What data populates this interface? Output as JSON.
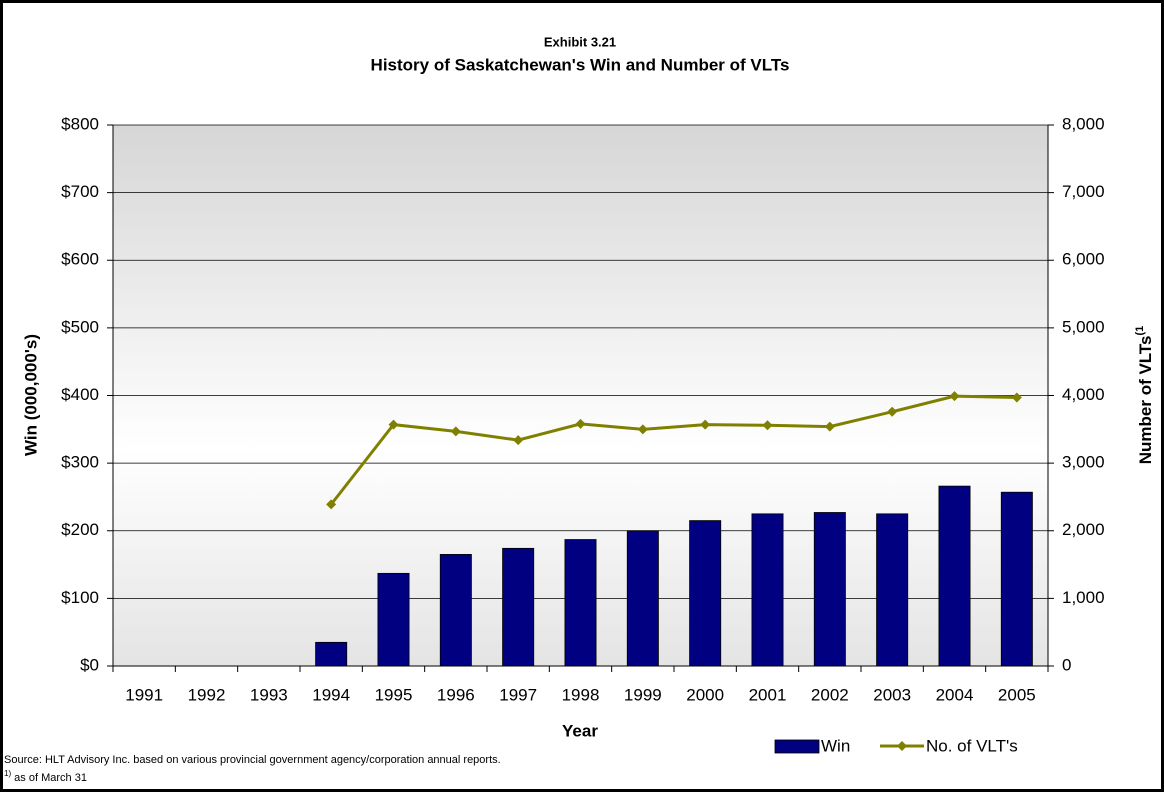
{
  "chart_data": {
    "type": "bar_line",
    "subtitle": "Exhibit 3.21",
    "title": "History of Saskatchewan's Win and Number of VLTs",
    "x_label": "Year",
    "y_label": "Win (000,000's)",
    "y2_label": "Number of VLTs",
    "y2_label_note": "(1",
    "categories": [
      "1991",
      "1992",
      "1993",
      "1994",
      "1995",
      "1996",
      "1997",
      "1998",
      "1999",
      "2000",
      "2001",
      "2002",
      "2003",
      "2004",
      "2005"
    ],
    "series": [
      {
        "name": "Win",
        "type": "bar",
        "color": "#000080",
        "values": [
          null,
          null,
          null,
          35,
          137,
          165,
          174,
          187,
          200,
          215,
          225,
          227,
          225,
          266,
          257
        ]
      },
      {
        "name": "No. of VLT's",
        "type": "line",
        "axis": "y2",
        "color": "#808000",
        "values": [
          null,
          null,
          null,
          2390,
          3570,
          3470,
          3340,
          3580,
          3500,
          3570,
          3560,
          3540,
          3760,
          3990,
          3970
        ]
      }
    ],
    "ylim": [
      0,
      800
    ],
    "yticks": [
      {
        "value": 0,
        "label": "$0"
      },
      {
        "value": 100,
        "label": "$100"
      },
      {
        "value": 200,
        "label": "$200"
      },
      {
        "value": 300,
        "label": "$300"
      },
      {
        "value": 400,
        "label": "$400"
      },
      {
        "value": 500,
        "label": "$500"
      },
      {
        "value": 600,
        "label": "$600"
      },
      {
        "value": 700,
        "label": "$700"
      },
      {
        "value": 800,
        "label": "$800"
      }
    ],
    "y2lim": [
      0,
      8000
    ],
    "y2ticks": [
      0,
      {
        "value": 1000,
        "label": "1,000"
      },
      {
        "value": 2000,
        "label": "2,000"
      },
      {
        "value": 3000,
        "label": "3,000"
      },
      {
        "value": 4000,
        "label": "4,000"
      },
      {
        "value": 5000,
        "label": "5,000"
      },
      {
        "value": 6000,
        "label": "6,000"
      },
      {
        "value": 7000,
        "label": "7,000"
      },
      {
        "value": 8000,
        "label": "8,000"
      }
    ],
    "grid": true,
    "legend": "bottom-right",
    "source": "Source: HLT Advisory Inc. based on various provincial government agency/corporation annual reports.",
    "footnote_mark": "1)",
    "footnote": " as of March 31"
  }
}
